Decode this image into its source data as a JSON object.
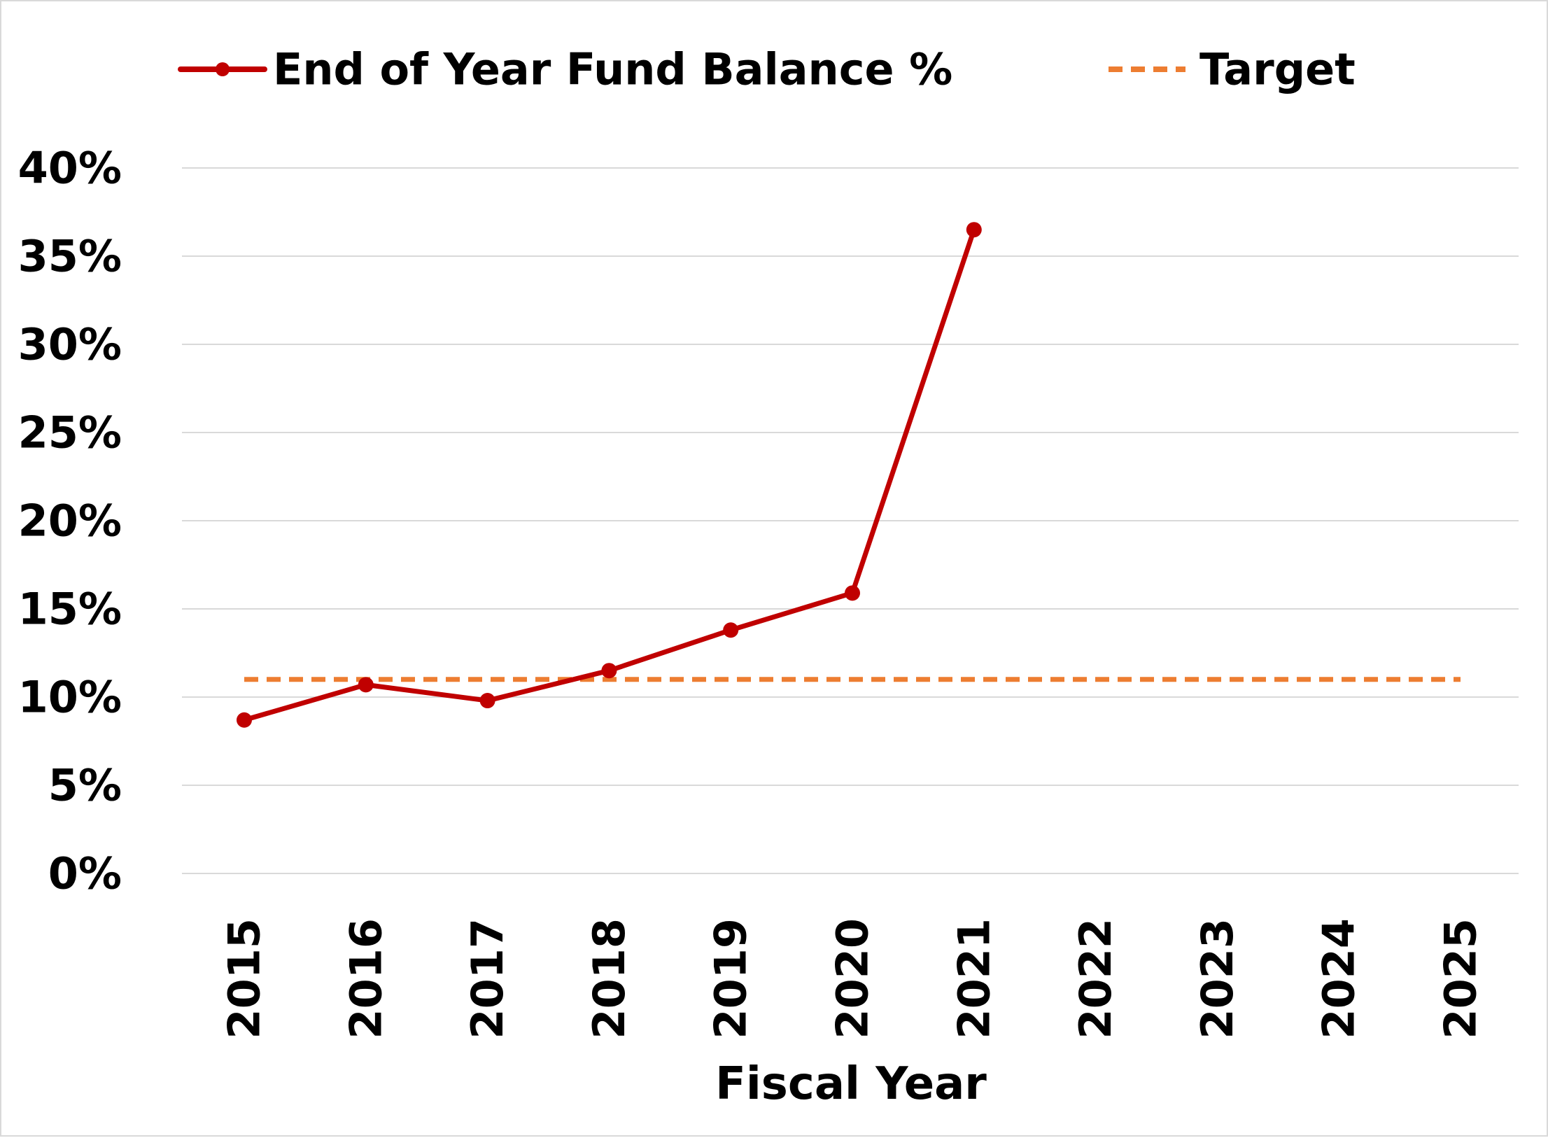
{
  "chart_data": {
    "type": "line",
    "title": "",
    "xlabel": "Fiscal Year",
    "ylabel": "",
    "categories": [
      "2015",
      "2016",
      "2017",
      "2018",
      "2019",
      "2020",
      "2021",
      "2022",
      "2023",
      "2024",
      "2025"
    ],
    "ylim": [
      0,
      40
    ],
    "yticks": [
      0,
      5,
      10,
      15,
      20,
      25,
      30,
      35,
      40
    ],
    "ytick_format": "{v}%",
    "grid": "horizontal",
    "legend_position": "top",
    "series": [
      {
        "name": "End of Year Fund Balance %",
        "style": "solid-with-markers",
        "color": "#c00000",
        "values": [
          8.7,
          10.7,
          9.8,
          11.5,
          13.8,
          15.9,
          36.5,
          null,
          null,
          null,
          null
        ]
      },
      {
        "name": "Target",
        "style": "dashed",
        "color": "#ed7d31",
        "values": [
          11,
          11,
          11,
          11,
          11,
          11,
          11,
          11,
          11,
          11,
          11
        ]
      }
    ]
  }
}
